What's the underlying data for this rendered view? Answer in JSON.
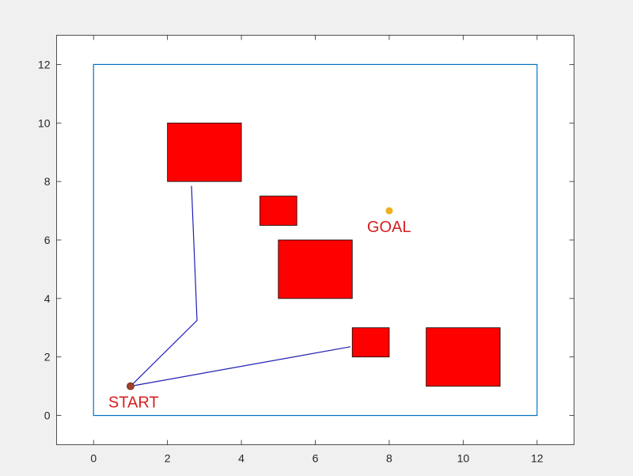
{
  "chart_data": {
    "type": "scatter",
    "title": "",
    "xlabel": "",
    "ylabel": "",
    "xlim": [
      -1,
      13
    ],
    "ylim": [
      -1,
      13
    ],
    "grid": false,
    "x_ticks": [
      "0",
      "2",
      "4",
      "6",
      "8",
      "10",
      "12"
    ],
    "y_ticks": [
      "0",
      "2",
      "4",
      "6",
      "8",
      "10",
      "12"
    ],
    "workspace_boundary": {
      "x": [
        0,
        12
      ],
      "y": [
        0,
        12
      ],
      "color": "#0072bd"
    },
    "obstacles": [
      {
        "x": 2,
        "y": 8,
        "w": 2,
        "h": 2
      },
      {
        "x": 4.5,
        "y": 6.5,
        "w": 1,
        "h": 1
      },
      {
        "x": 5,
        "y": 4,
        "w": 2,
        "h": 2
      },
      {
        "x": 7,
        "y": 2,
        "w": 1,
        "h": 1
      },
      {
        "x": 9,
        "y": 1,
        "w": 2,
        "h": 2
      }
    ],
    "obstacle_color": "#ff0000",
    "paths": [
      {
        "points": [
          [
            1,
            1
          ],
          [
            2.8,
            3.25
          ],
          [
            2.65,
            7.85
          ]
        ]
      },
      {
        "points": [
          [
            1,
            1
          ],
          [
            6.95,
            2.35
          ]
        ]
      }
    ],
    "path_color": "#1f1fb4",
    "start": {
      "x": 1,
      "y": 1,
      "label": "START",
      "color": "#a0412a",
      "label_color": "#d62020"
    },
    "goal": {
      "x": 8,
      "y": 7,
      "label": "GOAL",
      "color": "#edb120",
      "label_color": "#d62020"
    }
  }
}
